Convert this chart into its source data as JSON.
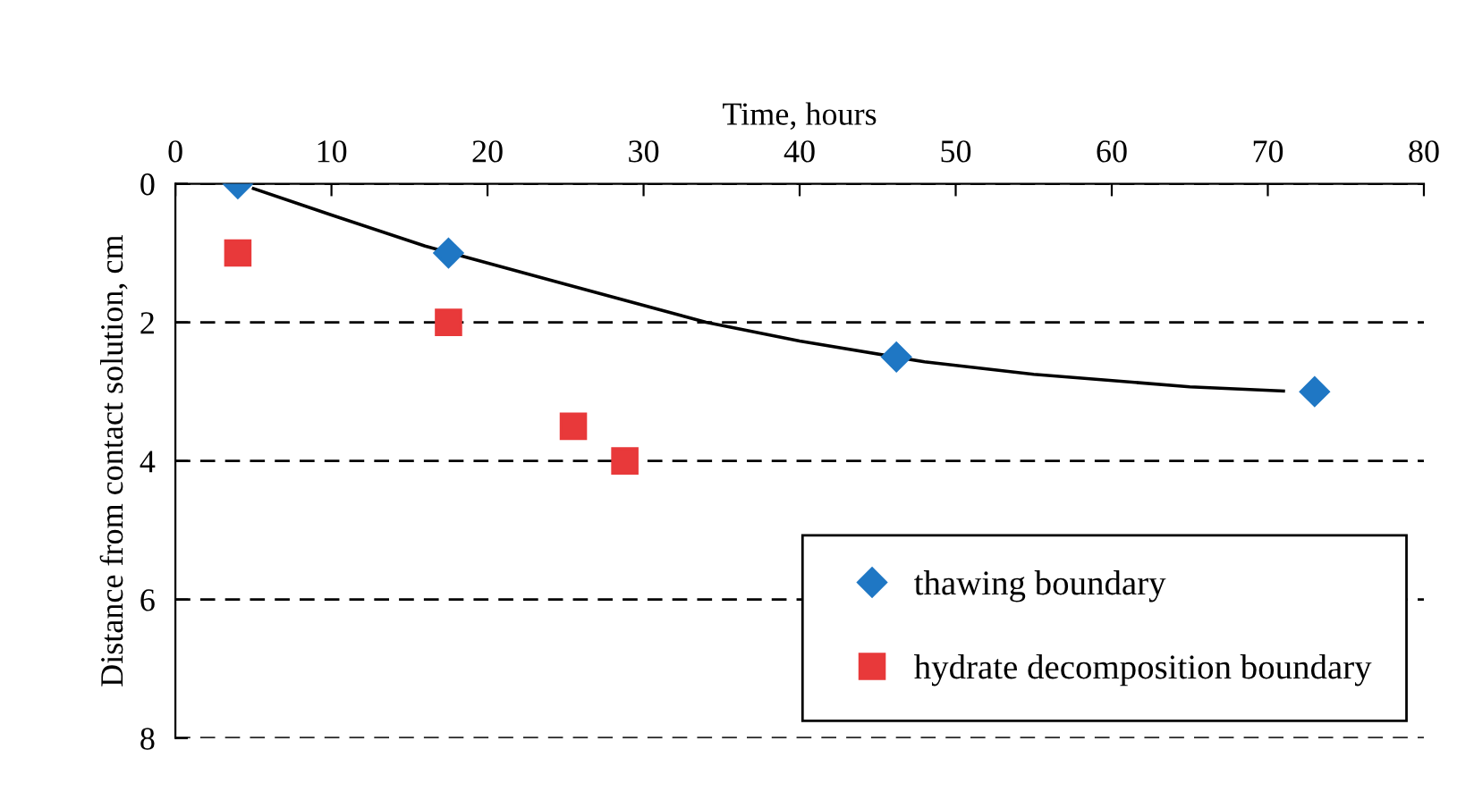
{
  "chart_data": {
    "type": "scatter",
    "xlabel": "Time, hours",
    "ylabel": "Distance from contact solution, cm",
    "xlim": [
      0,
      80
    ],
    "xticks": [
      0,
      10,
      20,
      30,
      40,
      50,
      60,
      70,
      80
    ],
    "ylim": [
      8,
      0
    ],
    "yticks": [
      0,
      2,
      4,
      6,
      8
    ],
    "grid": "y",
    "legend": "bottom right",
    "series": [
      {
        "name": "thawing boundary",
        "color": "#1f77c4",
        "marker": "diamond",
        "x": [
          4,
          17.5,
          46.2,
          73
        ],
        "values": [
          0,
          1,
          2.5,
          3
        ]
      },
      {
        "name": "hydrate decomposition boundary",
        "color": "#e8393a",
        "marker": "square",
        "x": [
          4,
          17.5,
          25.5,
          28.8
        ],
        "values": [
          1,
          2,
          3.5,
          4
        ]
      },
      {
        "type": "line",
        "color": "#000000",
        "marker": "none",
        "line_style": "solid",
        "x": [
          5,
          10,
          16,
          25,
          34,
          40,
          48,
          55,
          65,
          71
        ],
        "values": [
          0.07,
          0.45,
          0.9,
          1.45,
          2,
          2.27,
          2.57,
          2.75,
          2.93,
          2.99
        ]
      }
    ]
  }
}
